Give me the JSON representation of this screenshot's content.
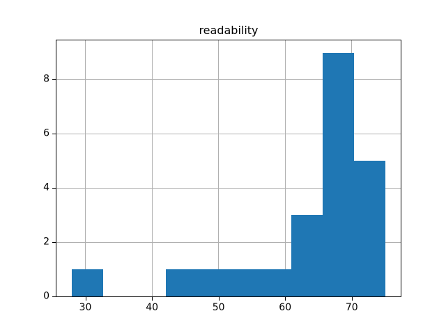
{
  "figure": {
    "background": "#ffffff"
  },
  "chart_data": {
    "type": "bar",
    "subtype": "histogram",
    "title": "readability",
    "xlabel": "",
    "ylabel": "",
    "bin_edges": [
      28.0,
      32.7,
      37.4,
      42.1,
      46.8,
      51.5,
      56.2,
      60.9,
      65.6,
      70.3,
      75.0
    ],
    "counts": [
      1,
      0,
      0,
      1,
      1,
      1,
      1,
      3,
      9,
      5
    ],
    "xlim": [
      25.65,
      77.35
    ],
    "ylim": [
      0,
      9.45
    ],
    "x_ticks": [
      30,
      40,
      50,
      60,
      70
    ],
    "x_tick_labels": [
      "30",
      "40",
      "50",
      "60",
      "70"
    ],
    "y_ticks": [
      0,
      2,
      4,
      6,
      8
    ],
    "y_tick_labels": [
      "0",
      "2",
      "4",
      "6",
      "8"
    ],
    "grid": true,
    "legend": null,
    "bar_color": "#1f77b4",
    "grid_color": "#b0b0b0",
    "spine_color": "#000000",
    "text_color": "#000000"
  }
}
